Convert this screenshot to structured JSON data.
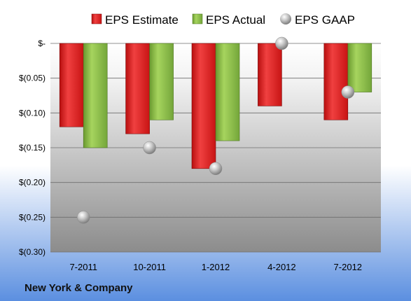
{
  "chart_data": {
    "type": "bar",
    "title": "",
    "xlabel": "",
    "ylabel": "",
    "categories": [
      "7-2011",
      "10-2011",
      "1-2012",
      "4-2012",
      "7-2012"
    ],
    "series": [
      {
        "name": "EPS Estimate",
        "type": "bar",
        "values": [
          -0.12,
          -0.13,
          -0.18,
          -0.09,
          -0.11
        ],
        "color": "#e21e1e"
      },
      {
        "name": "EPS Actual",
        "type": "bar",
        "values": [
          -0.15,
          -0.11,
          -0.14,
          null,
          -0.07
        ],
        "color": "#8cc04a"
      },
      {
        "name": "EPS GAAP",
        "type": "scatter",
        "values": [
          -0.25,
          -0.15,
          -0.18,
          0.0,
          -0.07
        ],
        "color": "#b8b8b8"
      }
    ],
    "ylim": [
      -0.3,
      0.0
    ],
    "y_ticks": [
      0.0,
      -0.05,
      -0.1,
      -0.15,
      -0.2,
      -0.25,
      -0.3
    ],
    "y_tick_labels": [
      "$-",
      "$(0.05)",
      "$(0.10)",
      "$(0.15)",
      "$(0.20)",
      "$(0.25)",
      "$(0.30)"
    ],
    "grid": true,
    "legend_position": "top"
  },
  "footer": {
    "company": "New York & Company"
  },
  "colors": {
    "background_top": "#ffffff",
    "background_bottom": "#5b8fe0",
    "plot_top": "#ffffff",
    "plot_bottom": "#8c8c8c",
    "estimate": "#e21e1e",
    "actual": "#8cc04a",
    "gaap": "#b8b8b8"
  }
}
